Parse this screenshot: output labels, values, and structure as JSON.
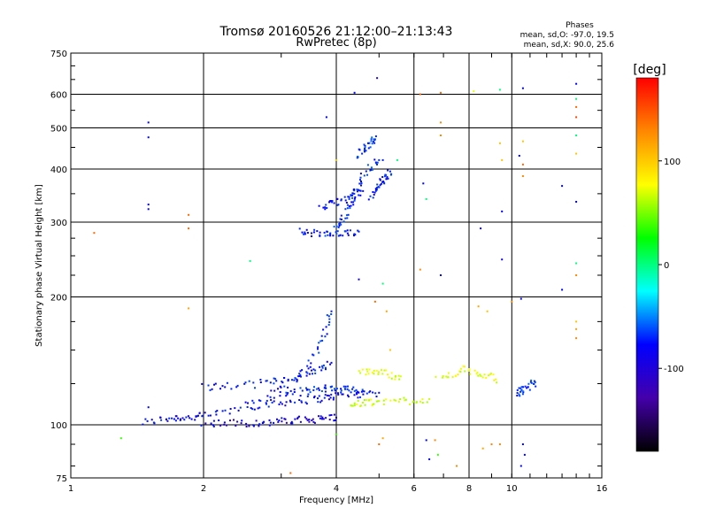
{
  "chart_data": {
    "type": "scatter",
    "title": "Tromsø 20160526 21:12:00–21:13:43",
    "subtitle": "RwPretec (8p)",
    "xlabel": "Frequency [MHz]",
    "ylabel": "Stationary phase Virtual Height [km]",
    "x_scale": "log",
    "y_scale": "log",
    "xlim": [
      1,
      16
    ],
    "ylim": [
      75,
      750
    ],
    "x_ticks": [
      1,
      2,
      4,
      6,
      8,
      10,
      16
    ],
    "y_ticks": [
      75,
      100,
      200,
      300,
      400,
      500,
      600,
      750
    ],
    "grid": true,
    "phases": {
      "title": "Phases",
      "o_line": "mean, sd,O: -97.0, 19.5",
      "x_line": "mean, sd,X:  90.0, 25.6"
    },
    "colorbar": {
      "label": "[deg]",
      "range": [
        -180,
        180
      ],
      "ticks": [
        100,
        0,
        -100
      ],
      "colors": [
        "#ff0000",
        "#ff8800",
        "#ffff00",
        "#00ff00",
        "#00ffff",
        "#0000ff",
        "#4400aa",
        "#000000"
      ]
    },
    "traces": [
      {
        "name": "",
        "phase": -110,
        "f": [
          1.45,
          1.6,
          1.7,
          1.8,
          1.9,
          2.0,
          2.2,
          2.5,
          2.8,
          3.0,
          3.3,
          3.6,
          3.8,
          4.0,
          4.3,
          4.6,
          5.0
        ],
        "h": [
          101,
          103,
          104,
          104,
          104,
          105,
          107,
          110,
          112,
          113,
          114,
          115,
          116,
          117,
          118,
          118,
          119
        ]
      },
      {
        "name": "",
        "phase": -120,
        "f": [
          2.0,
          2.2,
          2.4,
          2.6,
          2.8,
          3.0,
          3.2,
          3.4,
          3.6,
          3.8,
          4.0
        ],
        "h": [
          101,
          101,
          101,
          101,
          101,
          102,
          102,
          103,
          103,
          104,
          104
        ]
      },
      {
        "name": "",
        "phase": -105,
        "f": [
          2.0,
          2.2,
          2.5,
          2.8,
          3.0,
          3.3,
          3.5,
          3.7,
          3.9
        ],
        "h": [
          123,
          123,
          124,
          126,
          128,
          131,
          133,
          136,
          140
        ]
      },
      {
        "name": "",
        "phase": -100,
        "f": [
          2.5,
          2.8,
          3.0,
          3.3,
          3.5,
          3.7,
          3.8,
          3.9
        ],
        "h": [
          112,
          116,
          122,
          130,
          140,
          155,
          170,
          185
        ]
      },
      {
        "name": "",
        "phase": -95,
        "f": [
          3.0,
          3.2,
          3.4,
          3.6,
          3.8,
          4.0,
          4.2,
          4.4,
          4.6
        ],
        "h": [
          118,
          119,
          120,
          121,
          122,
          122,
          121,
          121,
          120
        ]
      },
      {
        "name": "",
        "phase": -100,
        "f": [
          3.3,
          3.5,
          3.7,
          3.9,
          4.1,
          4.3,
          4.5
        ],
        "h": [
          285,
          283,
          281,
          280,
          280,
          282,
          285
        ]
      },
      {
        "name": "",
        "phase": -95,
        "f": [
          4.0,
          4.1,
          4.2,
          4.3,
          4.4,
          4.5,
          4.6,
          4.8,
          5.0
        ],
        "h": [
          290,
          300,
          315,
          330,
          345,
          365,
          385,
          405,
          420
        ]
      },
      {
        "name": "",
        "phase": -105,
        "f": [
          3.7,
          3.9,
          4.0,
          4.2,
          4.4,
          4.6
        ],
        "h": [
          325,
          330,
          335,
          340,
          345,
          355
        ]
      },
      {
        "name": "",
        "phase": -100,
        "f": [
          4.8,
          4.9,
          5.0,
          5.1,
          5.2,
          5.3
        ],
        "h": [
          340,
          355,
          365,
          375,
          385,
          395
        ]
      },
      {
        "name": "",
        "phase": -90,
        "f": [
          4.5,
          4.6,
          4.7,
          4.8,
          4.9
        ],
        "h": [
          430,
          445,
          455,
          465,
          470
        ]
      },
      {
        "name": "",
        "phase": -90,
        "f": [
          10.3,
          10.5,
          10.7,
          11.0,
          11.3
        ],
        "h": [
          118,
          120,
          122,
          124,
          126
        ]
      },
      {
        "name": "",
        "phase": 90,
        "f": [
          6.8,
          7.3,
          7.8,
          8.3,
          8.8,
          9.2
        ],
        "h": [
          128,
          132,
          135,
          133,
          130,
          128
        ]
      },
      {
        "name": "",
        "phase": 85,
        "f": [
          4.5,
          4.8,
          5.0,
          5.3,
          5.6
        ],
        "h": [
          132,
          134,
          133,
          131,
          130
        ]
      },
      {
        "name": "",
        "phase": 80,
        "f": [
          4.3,
          4.5,
          4.8,
          5.0,
          5.5,
          6.0,
          6.5
        ],
        "h": [
          111,
          112,
          113,
          113,
          114,
          114,
          115
        ]
      }
    ],
    "scattered": [
      {
        "f": 1.13,
        "h": 283,
        "phase": 150
      },
      {
        "f": 1.5,
        "h": 515,
        "phase": -110
      },
      {
        "f": 1.5,
        "h": 475,
        "phase": -110
      },
      {
        "f": 1.5,
        "h": 330,
        "phase": -110
      },
      {
        "f": 1.5,
        "h": 322,
        "phase": -110
      },
      {
        "f": 1.5,
        "h": 110,
        "phase": -110
      },
      {
        "f": 1.3,
        "h": 93,
        "phase": 20
      },
      {
        "f": 1.85,
        "h": 312,
        "phase": 150
      },
      {
        "f": 1.85,
        "h": 290,
        "phase": 150
      },
      {
        "f": 1.85,
        "h": 188,
        "phase": 130
      },
      {
        "f": 2.55,
        "h": 243,
        "phase": -10
      },
      {
        "f": 3.15,
        "h": 77,
        "phase": 150
      },
      {
        "f": 3.8,
        "h": 530,
        "phase": -110
      },
      {
        "f": 4.0,
        "h": 420,
        "phase": 120
      },
      {
        "f": 4.0,
        "h": 95,
        "phase": 20
      },
      {
        "f": 4.4,
        "h": 605,
        "phase": -110
      },
      {
        "f": 4.95,
        "h": 655,
        "phase": -120
      },
      {
        "f": 5.1,
        "h": 420,
        "phase": -100
      },
      {
        "f": 4.5,
        "h": 220,
        "phase": -120
      },
      {
        "f": 5.1,
        "h": 215,
        "phase": -10
      },
      {
        "f": 4.9,
        "h": 195,
        "phase": 150
      },
      {
        "f": 5.2,
        "h": 185,
        "phase": 130
      },
      {
        "f": 5.3,
        "h": 150,
        "phase": 120
      },
      {
        "f": 5.1,
        "h": 93,
        "phase": 130
      },
      {
        "f": 5.0,
        "h": 90,
        "phase": 150
      },
      {
        "f": 5.5,
        "h": 420,
        "phase": -10
      },
      {
        "f": 6.2,
        "h": 600,
        "phase": 150
      },
      {
        "f": 6.3,
        "h": 370,
        "phase": -110
      },
      {
        "f": 6.4,
        "h": 340,
        "phase": -10
      },
      {
        "f": 6.2,
        "h": 232,
        "phase": 140
      },
      {
        "f": 6.4,
        "h": 92,
        "phase": -110
      },
      {
        "f": 6.5,
        "h": 83,
        "phase": -110
      },
      {
        "f": 6.9,
        "h": 605,
        "phase": 150
      },
      {
        "f": 6.9,
        "h": 515,
        "phase": 140
      },
      {
        "f": 6.9,
        "h": 480,
        "phase": 140
      },
      {
        "f": 6.9,
        "h": 225,
        "phase": -110
      },
      {
        "f": 6.7,
        "h": 92,
        "phase": 140
      },
      {
        "f": 6.8,
        "h": 85,
        "phase": 20
      },
      {
        "f": 7.5,
        "h": 80,
        "phase": 140
      },
      {
        "f": 8.2,
        "h": 610,
        "phase": 90
      },
      {
        "f": 8.5,
        "h": 290,
        "phase": -120
      },
      {
        "f": 8.4,
        "h": 190,
        "phase": 130
      },
      {
        "f": 8.8,
        "h": 185,
        "phase": 120
      },
      {
        "f": 8.6,
        "h": 88,
        "phase": 130
      },
      {
        "f": 9.0,
        "h": 90,
        "phase": 140
      },
      {
        "f": 9.4,
        "h": 615,
        "phase": -10
      },
      {
        "f": 9.4,
        "h": 460,
        "phase": 120
      },
      {
        "f": 9.5,
        "h": 420,
        "phase": 120
      },
      {
        "f": 9.5,
        "h": 318,
        "phase": -110
      },
      {
        "f": 9.5,
        "h": 245,
        "phase": -120
      },
      {
        "f": 9.4,
        "h": 90,
        "phase": 140
      },
      {
        "f": 10.0,
        "h": 195,
        "phase": 140
      },
      {
        "f": 10.6,
        "h": 620,
        "phase": -110
      },
      {
        "f": 10.6,
        "h": 465,
        "phase": 120
      },
      {
        "f": 10.4,
        "h": 430,
        "phase": -110
      },
      {
        "f": 10.6,
        "h": 410,
        "phase": 150
      },
      {
        "f": 10.6,
        "h": 385,
        "phase": 140
      },
      {
        "f": 10.5,
        "h": 198,
        "phase": -110
      },
      {
        "f": 10.6,
        "h": 90,
        "phase": -110
      },
      {
        "f": 10.7,
        "h": 85,
        "phase": -110
      },
      {
        "f": 10.5,
        "h": 80,
        "phase": -110
      },
      {
        "f": 13.0,
        "h": 365,
        "phase": -110
      },
      {
        "f": 13.0,
        "h": 208,
        "phase": -110
      },
      {
        "f": 14.0,
        "h": 635,
        "phase": -110
      },
      {
        "f": 14.0,
        "h": 585,
        "phase": -10
      },
      {
        "f": 14.0,
        "h": 560,
        "phase": 150
      },
      {
        "f": 14.0,
        "h": 530,
        "phase": 160
      },
      {
        "f": 14.0,
        "h": 480,
        "phase": -10
      },
      {
        "f": 14.0,
        "h": 435,
        "phase": 120
      },
      {
        "f": 14.0,
        "h": 335,
        "phase": -110
      },
      {
        "f": 14.0,
        "h": 240,
        "phase": -10
      },
      {
        "f": 14.0,
        "h": 225,
        "phase": 140
      },
      {
        "f": 14.0,
        "h": 175,
        "phase": 120
      },
      {
        "f": 14.0,
        "h": 168,
        "phase": 130
      },
      {
        "f": 14.0,
        "h": 160,
        "phase": 140
      }
    ]
  }
}
